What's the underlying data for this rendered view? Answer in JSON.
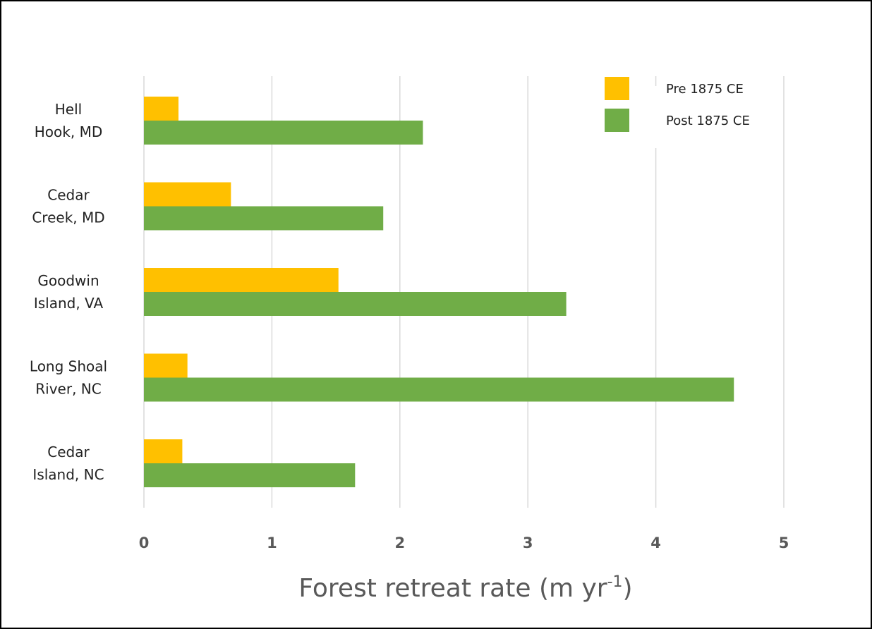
{
  "chart_data": {
    "type": "bar",
    "orientation": "horizontal",
    "categories": [
      [
        "Hell",
        "Hook, MD"
      ],
      [
        "Cedar",
        "Creek, MD"
      ],
      [
        "Goodwin",
        "Island, VA"
      ],
      [
        "Long Shoal",
        "River, NC"
      ],
      [
        "Cedar",
        "Island, NC"
      ]
    ],
    "series": [
      {
        "name": "Pre 1875 CE",
        "color": "#FFC000",
        "values": [
          0.27,
          0.68,
          1.52,
          0.34,
          0.3
        ]
      },
      {
        "name": "Post 1875 CE",
        "color": "#70AD47",
        "values": [
          2.18,
          1.87,
          3.3,
          4.61,
          1.65
        ]
      }
    ],
    "xlabel": "Forest retreat rate (m yr",
    "xlabel_superscript": "-1",
    "xlabel_close": ")",
    "xlim": [
      0,
      5
    ],
    "xticks": [
      "0",
      "1",
      "2",
      "3",
      "4",
      "5"
    ],
    "grid": "vertical",
    "legend_position": "top-right"
  }
}
